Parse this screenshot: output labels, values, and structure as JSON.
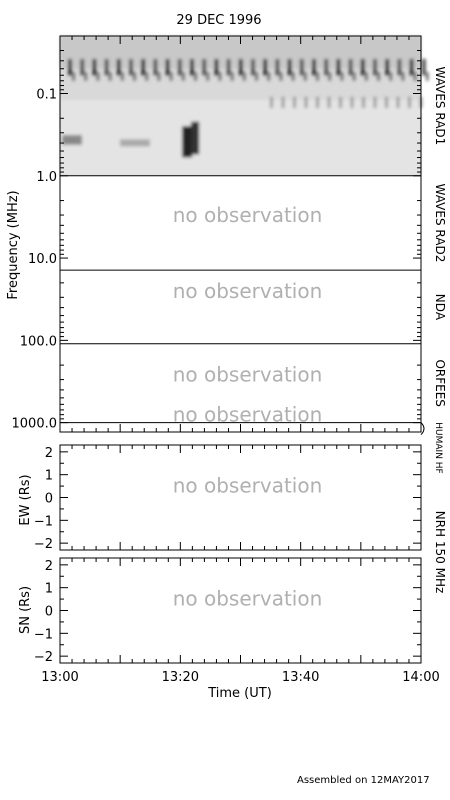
{
  "title": "29 DEC 1996",
  "footer": "Assembled on 12MAY2017",
  "no_observation_text": "no observation",
  "chart_data": [
    {
      "type": "heatmap",
      "panel": "dynamic-spectrum",
      "ylabel": "Frequency (MHz)",
      "y_scale": "log",
      "y_reversed": true,
      "ylim": [
        0.02,
        1300
      ],
      "y_ticks": [
        {
          "value": 0.1,
          "label": "0.1"
        },
        {
          "value": 1.0,
          "label": "1.0"
        },
        {
          "value": 10.0,
          "label": "10.0"
        },
        {
          "value": 100.0,
          "label": "100.0"
        },
        {
          "value": 1000.0,
          "label": "1000.0"
        }
      ],
      "bands": [
        {
          "name": "WAVES RAD1",
          "range_mhz": [
            0.02,
            1.0
          ],
          "observed": true
        },
        {
          "name": "WAVES RAD2",
          "range_mhz": [
            1.0,
            14.0
          ],
          "observed": false
        },
        {
          "name": "NDA",
          "range_mhz": [
            14.0,
            110.0
          ],
          "observed": false
        },
        {
          "name": "ORFEES",
          "range_mhz": [
            110.0,
            1000.0
          ],
          "observed": false
        },
        {
          "name": "HUMAIN HF",
          "range_mhz": [
            1000.0,
            1300.0
          ],
          "observed": false
        }
      ],
      "no_obs_labels_at_mhz": [
        3.0,
        25.0,
        260.0,
        800.0
      ]
    },
    {
      "type": "line",
      "panel": "nrh-ew",
      "ylabel": "EW (Rs)",
      "ylim": [
        -2.3,
        2.3
      ],
      "y_ticks": [
        2,
        1,
        0,
        -1,
        -2
      ],
      "observed": false
    },
    {
      "type": "line",
      "panel": "nrh-sn",
      "ylabel": "SN (Rs)",
      "ylim": [
        -2.3,
        2.3
      ],
      "y_ticks": [
        2,
        1,
        0,
        -1,
        -2
      ],
      "observed": false
    }
  ],
  "shared_axis": {
    "xlabel": "Time (UT)",
    "xlim_minutes": [
      0,
      60
    ],
    "x_ticks": [
      {
        "value": 0,
        "label": "13:00"
      },
      {
        "value": 20,
        "label": "13:20"
      },
      {
        "value": 40,
        "label": "13:40"
      },
      {
        "value": 60,
        "label": "14:00"
      }
    ]
  },
  "right_label_nrh": "NRH 150 MHz"
}
